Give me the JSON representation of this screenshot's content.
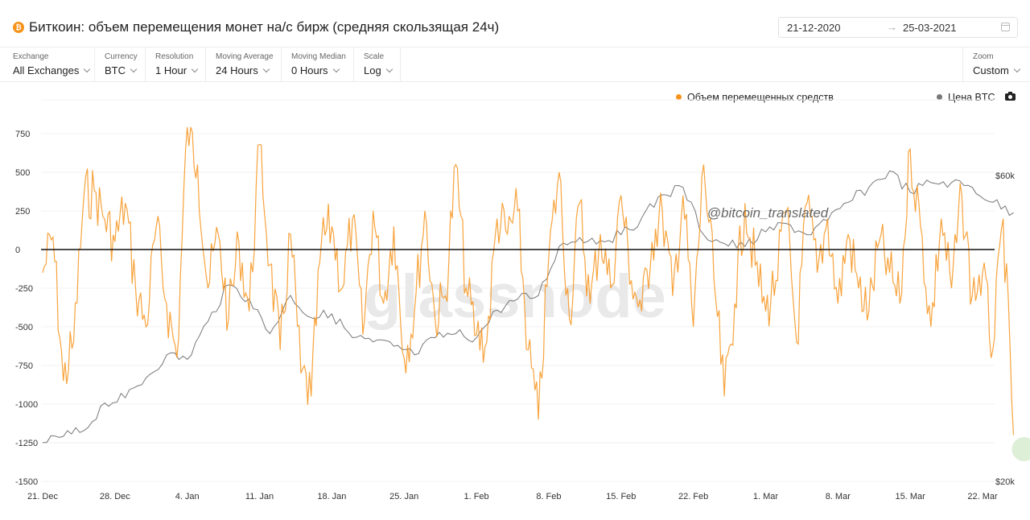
{
  "header": {
    "coin_icon": "bitcoin-icon",
    "coin_glyph": "₿",
    "title": "Биткоин: объем перемещения монет на/с бирж (средняя скользящая 24ч)",
    "date_from": "21-12-2020",
    "date_arrow": "→",
    "date_to": "25-03-2021",
    "calendar_icon": "calendar-icon"
  },
  "toolbar": {
    "controls": [
      {
        "label": "Exchange",
        "value": "All Exchanges"
      },
      {
        "label": "Currency",
        "value": "BTC"
      },
      {
        "label": "Resolution",
        "value": "1 Hour"
      },
      {
        "label": "Moving Average",
        "value": "24 Hours"
      },
      {
        "label": "Moving Median",
        "value": "0 Hours"
      },
      {
        "label": "Scale",
        "value": "Log"
      }
    ],
    "zoom": {
      "label": "Zoom",
      "value": "Custom"
    }
  },
  "legend": {
    "flow": "Объем перемещенных средств",
    "price": "Цена BTC",
    "camera_icon": "camera-icon"
  },
  "watermark": {
    "logo": "glassnode",
    "handle": "@bitcoin_translated"
  },
  "colors": {
    "flow": "#f7931a",
    "price": "#777777",
    "zero_line": "#111111",
    "grid": "#f0f0f0"
  },
  "chart_data": {
    "type": "line",
    "x_ticks": [
      "21. Dec",
      "28. Dec",
      "4. Jan",
      "11. Jan",
      "18. Jan",
      "25. Jan",
      "1. Feb",
      "8. Feb",
      "15. Feb",
      "22. Feb",
      "1. Mar",
      "8. Mar",
      "15. Mar",
      "22. Mar"
    ],
    "y_left": {
      "ticks": [
        "750",
        "500",
        "250",
        "0",
        "-250",
        "-500",
        "-750",
        "-1000",
        "-1250",
        "-1500"
      ],
      "ylim": [
        -1500,
        750
      ]
    },
    "y_right": {
      "ticks": [
        "$60k",
        "$20k"
      ],
      "scale": "log"
    },
    "grid": true,
    "legend_position": "top-right",
    "series": [
      {
        "name": "Объем перемещенных средств",
        "axis": "left",
        "x": [
          "2020-12-21",
          "2020-12-22",
          "2020-12-23",
          "2020-12-24",
          "2020-12-25",
          "2020-12-26",
          "2020-12-27",
          "2020-12-28",
          "2020-12-29",
          "2020-12-30",
          "2020-12-31",
          "2021-01-01",
          "2021-01-02",
          "2021-01-03",
          "2021-01-04",
          "2021-01-05",
          "2021-01-06",
          "2021-01-07",
          "2021-01-08",
          "2021-01-09",
          "2021-01-10",
          "2021-01-11",
          "2021-01-12",
          "2021-01-13",
          "2021-01-14",
          "2021-01-15",
          "2021-01-16",
          "2021-01-17",
          "2021-01-18",
          "2021-01-19",
          "2021-01-20",
          "2021-01-21",
          "2021-01-22",
          "2021-01-23",
          "2021-01-24",
          "2021-01-25",
          "2021-01-26",
          "2021-01-27",
          "2021-01-28",
          "2021-01-29",
          "2021-01-30",
          "2021-01-31",
          "2021-02-01",
          "2021-02-02",
          "2021-02-03",
          "2021-02-04",
          "2021-02-05",
          "2021-02-06",
          "2021-02-07",
          "2021-02-08",
          "2021-02-09",
          "2021-02-10",
          "2021-02-11",
          "2021-02-12",
          "2021-02-13",
          "2021-02-14",
          "2021-02-15",
          "2021-02-16",
          "2021-02-17",
          "2021-02-18",
          "2021-02-19",
          "2021-02-20",
          "2021-02-21",
          "2021-02-22",
          "2021-02-23",
          "2021-02-24",
          "2021-02-25",
          "2021-02-26",
          "2021-02-27",
          "2021-02-28",
          "2021-03-01",
          "2021-03-02",
          "2021-03-03",
          "2021-03-04",
          "2021-03-05",
          "2021-03-06",
          "2021-03-07",
          "2021-03-08",
          "2021-03-09",
          "2021-03-10",
          "2021-03-11",
          "2021-03-12",
          "2021-03-13",
          "2021-03-14",
          "2021-03-15",
          "2021-03-16",
          "2021-03-17",
          "2021-03-18",
          "2021-03-19",
          "2021-03-20",
          "2021-03-21",
          "2021-03-22",
          "2021-03-23",
          "2021-03-24",
          "2021-03-25"
        ],
        "values": [
          -150,
          80,
          -850,
          -600,
          350,
          380,
          200,
          50,
          300,
          -250,
          -500,
          150,
          -350,
          -700,
          800,
          550,
          -250,
          100,
          -450,
          50,
          -400,
          680,
          -100,
          -650,
          100,
          -800,
          -950,
          50,
          150,
          -250,
          200,
          -550,
          250,
          -350,
          150,
          -700,
          -400,
          250,
          -450,
          -300,
          550,
          -250,
          -550,
          -600,
          200,
          100,
          250,
          -650,
          -1100,
          -50,
          500,
          -450,
          300,
          -350,
          100,
          -250,
          350,
          -200,
          -400,
          50,
          250,
          -300,
          350,
          -500,
          550,
          -200,
          -950,
          -350,
          300,
          -100,
          -400,
          -200,
          250,
          -600,
          300,
          -150,
          200,
          -350,
          100,
          -250,
          -400,
          50,
          -150,
          -350,
          650,
          150,
          -500,
          200,
          -250,
          350,
          -300,
          -150,
          -650,
          200,
          -1200
        ]
      },
      {
        "name": "Цена BTC",
        "axis": "right",
        "x": [
          "2020-12-21",
          "2020-12-23",
          "2020-12-25",
          "2020-12-27",
          "2020-12-29",
          "2020-12-31",
          "2021-01-02",
          "2021-01-04",
          "2021-01-06",
          "2021-01-08",
          "2021-01-10",
          "2021-01-12",
          "2021-01-14",
          "2021-01-16",
          "2021-01-18",
          "2021-01-20",
          "2021-01-22",
          "2021-01-24",
          "2021-01-26",
          "2021-01-28",
          "2021-01-30",
          "2021-02-01",
          "2021-02-03",
          "2021-02-05",
          "2021-02-07",
          "2021-02-09",
          "2021-02-11",
          "2021-02-13",
          "2021-02-15",
          "2021-02-17",
          "2021-02-19",
          "2021-02-21",
          "2021-02-23",
          "2021-02-25",
          "2021-02-27",
          "2021-03-01",
          "2021-03-03",
          "2021-03-05",
          "2021-03-07",
          "2021-03-09",
          "2021-03-11",
          "2021-03-13",
          "2021-03-15",
          "2021-03-17",
          "2021-03-19",
          "2021-03-21",
          "2021-03-23",
          "2021-03-25"
        ],
        "values": [
          23000,
          23500,
          24000,
          26500,
          27000,
          29000,
          31500,
          31000,
          35500,
          40500,
          38500,
          34000,
          39000,
          36000,
          36500,
          33500,
          33000,
          32500,
          31500,
          33500,
          34000,
          33500,
          37000,
          38500,
          39000,
          46500,
          48000,
          47500,
          48500,
          51500,
          56000,
          57500,
          48500,
          47000,
          46500,
          49000,
          50500,
          48500,
          51000,
          54500,
          57500,
          61000,
          56500,
          58500,
          58500,
          57500,
          54500,
          52500
        ]
      }
    ]
  }
}
